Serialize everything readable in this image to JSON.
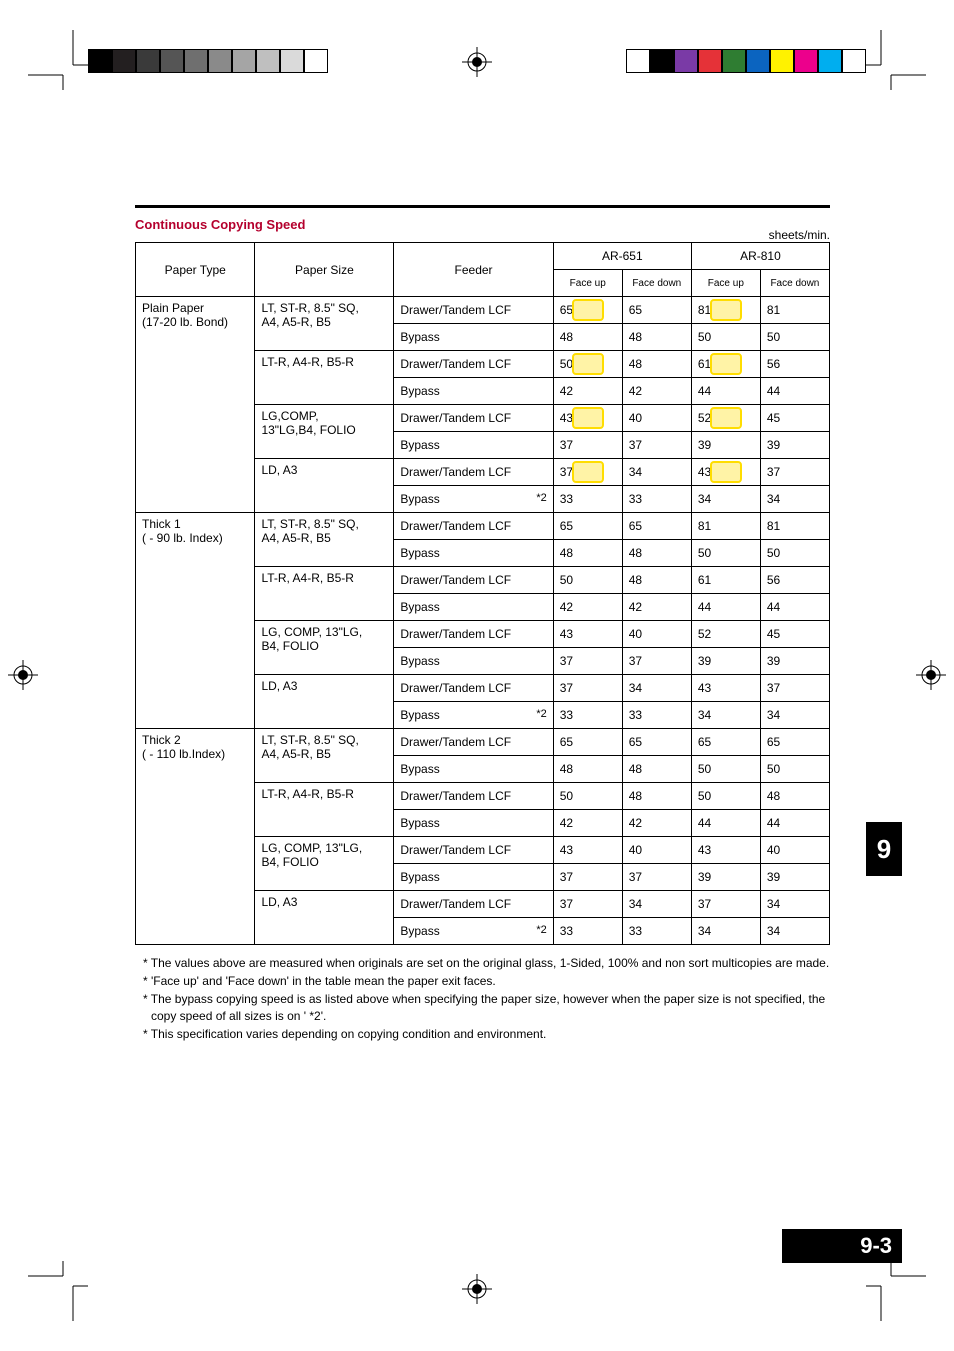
{
  "section_title": "Continuous Copying Speed",
  "unit_label": "sheets/min.",
  "page_number": "9-3",
  "chapter_tab": "9",
  "colors": {
    "title_red": "#b4002d",
    "black": "#000000",
    "white": "#ffffff",
    "highlight_border": "#ffdd00"
  },
  "color_bar_left": [
    "#000000",
    "#231f20",
    "#3a3a3a",
    "#555555",
    "#6f6f6f",
    "#8a8a8a",
    "#a5a5a5",
    "#bfbfbf",
    "#dadada",
    "#ffffff"
  ],
  "color_bar_right": [
    "#ffffff",
    "#000000",
    "#7a3aa6",
    "#e53238",
    "#2f7d32",
    "#0b64c0",
    "#fff200",
    "#ec008c",
    "#00aeef",
    "#ffffff"
  ],
  "table": {
    "head": {
      "paper_type": "Paper Type",
      "paper_size": "Paper Size",
      "feeder": "Feeder",
      "model_a": "AR-651",
      "model_b": "AR-810",
      "face_up": "Face up",
      "face_down": "Face down"
    },
    "rows": [
      {
        "pt": "Plain Paper",
        "pt2": "(17-20 lb. Bond)",
        "ps": "LT, ST-R, 8.5\" SQ,",
        "ps2": "A4, A5-R, B5",
        "fa": "Drawer/Tandem LCF",
        "a1": "65",
        "a2": "65",
        "b1": "81",
        "b2": "81",
        "hlA": true,
        "hlB": true
      },
      {
        "fa": "Bypass",
        "a1": "48",
        "a2": "48",
        "b1": "50",
        "b2": "50"
      },
      {
        "ps": "LT-R, A4-R, B5-R",
        "fa": "Drawer/Tandem LCF",
        "a1": "50",
        "a2": "48",
        "b1": "61",
        "b2": "56",
        "hlA": true,
        "hlB": true
      },
      {
        "fa": "Bypass",
        "a1": "42",
        "a2": "42",
        "b1": "44",
        "b2": "44"
      },
      {
        "ps": "LG,COMP,",
        "ps2": "13\"LG,B4, FOLIO",
        "fa": "Drawer/Tandem LCF",
        "a1": "43",
        "a2": "40",
        "b1": "52",
        "b2": "45",
        "hlA": true,
        "hlB": true
      },
      {
        "fa": "Bypass",
        "a1": "37",
        "a2": "37",
        "b1": "39",
        "b2": "39"
      },
      {
        "ps": "LD, A3",
        "fa": "Drawer/Tandem LCF",
        "a1": "37",
        "a2": "34",
        "b1": "43",
        "b2": "37",
        "hlA": true,
        "hlB": true
      },
      {
        "fa": "Bypass",
        "note": "*2",
        "a1": "33",
        "a2": "33",
        "b1": "34",
        "b2": "34"
      },
      {
        "pt": "Thick 1",
        "pt2": "( - 90 lb. Index)",
        "ps": "LT, ST-R, 8.5\" SQ,",
        "ps2": "A4, A5-R, B5",
        "fa": "Drawer/Tandem LCF",
        "a1": "65",
        "a2": "65",
        "b1": "81",
        "b2": "81"
      },
      {
        "fa": "Bypass",
        "a1": "48",
        "a2": "48",
        "b1": "50",
        "b2": "50"
      },
      {
        "ps": "LT-R, A4-R, B5-R",
        "fa": "Drawer/Tandem LCF",
        "a1": "50",
        "a2": "48",
        "b1": "61",
        "b2": "56"
      },
      {
        "fa": "Bypass",
        "a1": "42",
        "a2": "42",
        "b1": "44",
        "b2": "44"
      },
      {
        "ps": "LG, COMP, 13\"LG,",
        "ps2": "B4, FOLIO",
        "fa": "Drawer/Tandem LCF",
        "a1": "43",
        "a2": "40",
        "b1": "52",
        "b2": "45"
      },
      {
        "fa": "Bypass",
        "a1": "37",
        "a2": "37",
        "b1": "39",
        "b2": "39"
      },
      {
        "ps": "LD, A3",
        "fa": "Drawer/Tandem LCF",
        "a1": "37",
        "a2": "34",
        "b1": "43",
        "b2": "37"
      },
      {
        "fa": "Bypass",
        "note": "*2",
        "a1": "33",
        "a2": "33",
        "b1": "34",
        "b2": "34"
      },
      {
        "pt": "Thick 2",
        "pt2": "( - 110 lb.Index)",
        "ps": "LT, ST-R, 8.5\" SQ,",
        "ps2": "A4, A5-R, B5",
        "fa": "Drawer/Tandem LCF",
        "a1": "65",
        "a2": "65",
        "b1": "65",
        "b2": "65"
      },
      {
        "fa": "Bypass",
        "a1": "48",
        "a2": "48",
        "b1": "50",
        "b2": "50"
      },
      {
        "ps": "LT-R, A4-R, B5-R",
        "fa": "Drawer/Tandem LCF",
        "a1": "50",
        "a2": "48",
        "b1": "50",
        "b2": "48"
      },
      {
        "fa": "Bypass",
        "a1": "42",
        "a2": "42",
        "b1": "44",
        "b2": "44"
      },
      {
        "ps": "LG, COMP, 13\"LG,",
        "ps2": "B4, FOLIO",
        "fa": "Drawer/Tandem LCF",
        "a1": "43",
        "a2": "40",
        "b1": "43",
        "b2": "40"
      },
      {
        "fa": "Bypass",
        "a1": "37",
        "a2": "37",
        "b1": "39",
        "b2": "39"
      },
      {
        "ps": "LD, A3",
        "fa": "Drawer/Tandem LCF",
        "a1": "37",
        "a2": "34",
        "b1": "37",
        "b2": "34"
      },
      {
        "fa": "Bypass",
        "note": "*2",
        "a1": "33",
        "a2": "33",
        "b1": "34",
        "b2": "34"
      }
    ]
  },
  "notes": [
    "* The values above are measured when originals are set on the original glass, 1-Sided, 100% and non sort multicopies are made.",
    "* 'Face up' and 'Face down' in the table mean the paper exit faces.",
    "* The bypass copying speed is as listed above when specifying the paper size, however when the paper size is not specified, the copy speed of all sizes is on ' *2'.",
    "* This specification varies depending on copying condition and environment."
  ]
}
